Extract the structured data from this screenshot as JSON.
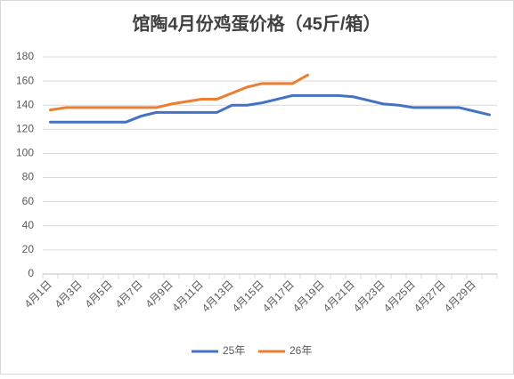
{
  "chart_data": {
    "type": "line",
    "title": "馆陶4月份鸡蛋价格（45斤/箱）",
    "categories": [
      "4月1日",
      null,
      "4月3日",
      null,
      "4月5日",
      null,
      "4月7日",
      null,
      "4月9日",
      null,
      "4月11日",
      null,
      "4月13日",
      null,
      "4月15日",
      null,
      "4月17日",
      null,
      "4月19日",
      null,
      "4月21日",
      null,
      "4月23日",
      null,
      "4月25日",
      null,
      "4月27日",
      null,
      "4月29日",
      null
    ],
    "series": [
      {
        "name": "25年",
        "color": "#4472c4",
        "values": [
          126,
          126,
          126,
          126,
          126,
          126,
          131,
          134,
          134,
          134,
          134,
          134,
          140,
          140,
          142,
          145,
          148,
          148,
          148,
          148,
          147,
          144,
          141,
          140,
          138,
          138,
          138,
          138,
          135,
          132
        ]
      },
      {
        "name": "26年",
        "color": "#ed7d31",
        "values": [
          136,
          138,
          138,
          138,
          138,
          138,
          138,
          138,
          141,
          143,
          145,
          145,
          150,
          155,
          158,
          158,
          158,
          165,
          null,
          null,
          null,
          null,
          null,
          null,
          null,
          null,
          null,
          null,
          null,
          null
        ]
      }
    ],
    "ylim": [
      0,
      180
    ],
    "yticks": [
      0,
      20,
      40,
      60,
      80,
      100,
      120,
      140,
      160,
      180
    ],
    "grid": true,
    "legend": "bottom"
  }
}
